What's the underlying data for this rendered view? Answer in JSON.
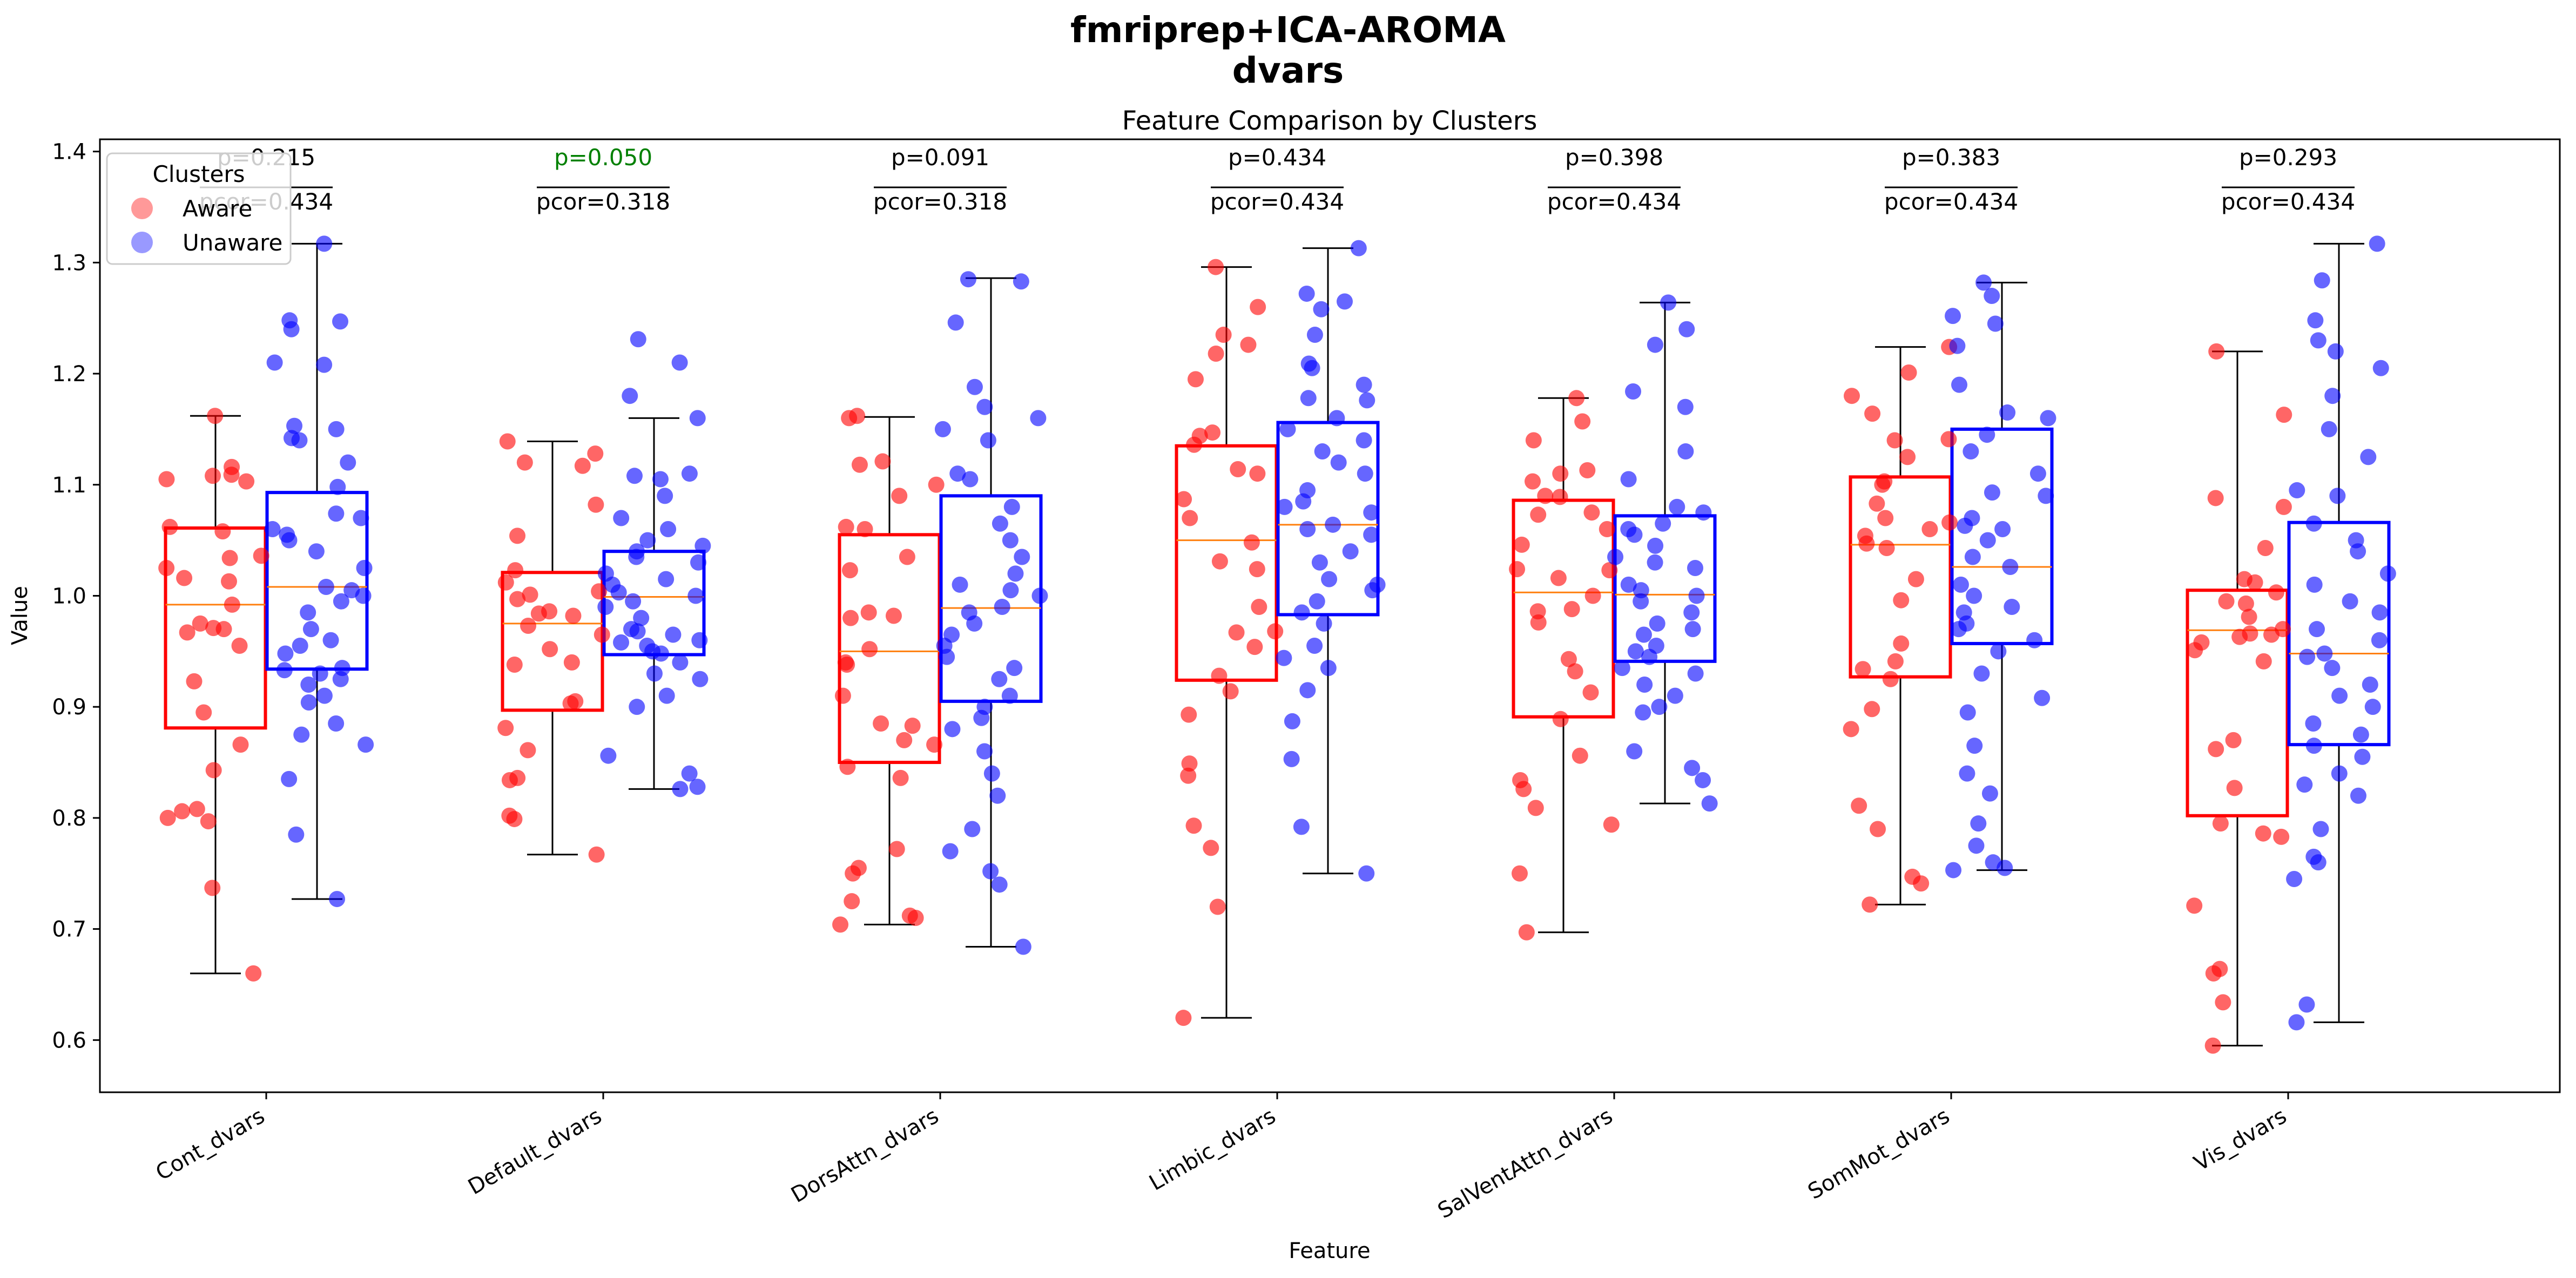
{
  "chart_data": {
    "type": "box",
    "suptitle_line1": "fmriprep+ICA-AROMA",
    "suptitle_line2": "dvars",
    "title": "Feature Comparison by Clusters",
    "xlabel": "Feature",
    "ylabel": "Value",
    "ylim": [
      0.553,
      1.411
    ],
    "yticks": [
      "0.6",
      "0.7",
      "0.8",
      "0.9",
      "1.0",
      "1.1",
      "1.2",
      "1.3",
      "1.4"
    ],
    "grid": false,
    "legend": {
      "title": "Clusters",
      "position": "top-left",
      "entries": [
        {
          "label": "Aware",
          "color": "#ff9999"
        },
        {
          "label": "Unaware",
          "color": "#9999ff"
        }
      ]
    },
    "colors": {
      "Aware": "#ff0000",
      "Unaware": "#0000ff",
      "median": "#ff7f0e",
      "significant": "#008000"
    },
    "categories": [
      "Cont_dvars",
      "Default_dvars",
      "DorsAttn_dvars",
      "Limbic_dvars",
      "SalVentAttn_dvars",
      "SomMot_dvars",
      "Vis_dvars"
    ],
    "annotations": [
      {
        "p": "p=0.215",
        "pcor": "pcor=0.434",
        "significant": false
      },
      {
        "p": "p=0.050",
        "pcor": "pcor=0.318",
        "significant": true
      },
      {
        "p": "p=0.091",
        "pcor": "pcor=0.318",
        "significant": false
      },
      {
        "p": "p=0.434",
        "pcor": "pcor=0.434",
        "significant": false
      },
      {
        "p": "p=0.398",
        "pcor": "pcor=0.434",
        "significant": false
      },
      {
        "p": "p=0.383",
        "pcor": "pcor=0.434",
        "significant": false
      },
      {
        "p": "p=0.293",
        "pcor": "pcor=0.434",
        "significant": false
      }
    ],
    "series": [
      {
        "name": "Aware",
        "boxes": [
          {
            "min": 0.66,
            "q1": 0.881,
            "median": 0.992,
            "q3": 1.061,
            "max": 1.162,
            "points": [
              0.66,
              0.737,
              0.797,
              0.8,
              0.806,
              0.808,
              0.843,
              0.866,
              0.895,
              0.923,
              0.955,
              0.967,
              0.97,
              0.971,
              0.975,
              0.992,
              1.013,
              1.016,
              1.025,
              1.034,
              1.036,
              1.058,
              1.062,
              1.103,
              1.105,
              1.108,
              1.109,
              1.116,
              1.162
            ]
          },
          {
            "min": 0.767,
            "q1": 0.897,
            "median": 0.975,
            "q3": 1.021,
            "max": 1.139,
            "points": [
              0.767,
              0.799,
              0.802,
              0.834,
              0.836,
              0.861,
              0.881,
              0.903,
              0.905,
              0.938,
              0.94,
              0.952,
              0.965,
              0.973,
              0.982,
              0.984,
              0.986,
              0.997,
              1.001,
              1.004,
              1.012,
              1.023,
              1.054,
              1.082,
              1.117,
              1.12,
              1.128,
              1.139
            ]
          },
          {
            "min": 0.704,
            "q1": 0.85,
            "median": 0.95,
            "q3": 1.055,
            "max": 1.161,
            "points": [
              0.704,
              0.71,
              0.712,
              0.725,
              0.75,
              0.755,
              0.772,
              0.836,
              0.846,
              0.866,
              0.87,
              0.883,
              0.885,
              0.91,
              0.938,
              0.94,
              0.952,
              0.98,
              0.982,
              0.985,
              1.023,
              1.035,
              1.06,
              1.062,
              1.09,
              1.1,
              1.118,
              1.121,
              1.16,
              1.162
            ]
          },
          {
            "min": 0.62,
            "q1": 0.924,
            "median": 1.05,
            "q3": 1.135,
            "max": 1.296,
            "points": [
              0.62,
              0.72,
              0.773,
              0.793,
              0.838,
              0.849,
              0.893,
              0.914,
              0.928,
              0.954,
              0.967,
              0.968,
              0.99,
              1.024,
              1.031,
              1.048,
              1.07,
              1.087,
              1.11,
              1.114,
              1.136,
              1.144,
              1.147,
              1.195,
              1.218,
              1.226,
              1.235,
              1.26,
              1.296
            ]
          },
          {
            "min": 0.697,
            "q1": 0.891,
            "median": 1.003,
            "q3": 1.086,
            "max": 1.178,
            "points": [
              0.697,
              0.75,
              0.794,
              0.809,
              0.826,
              0.834,
              0.856,
              0.889,
              0.913,
              0.932,
              0.943,
              0.976,
              0.986,
              0.988,
              1.0,
              1.016,
              1.023,
              1.024,
              1.046,
              1.06,
              1.073,
              1.075,
              1.089,
              1.09,
              1.103,
              1.11,
              1.113,
              1.14,
              1.157,
              1.178
            ]
          },
          {
            "min": 0.722,
            "q1": 0.927,
            "median": 1.046,
            "q3": 1.107,
            "max": 1.224,
            "points": [
              0.722,
              0.741,
              0.747,
              0.79,
              0.811,
              0.88,
              0.898,
              0.925,
              0.934,
              0.941,
              0.957,
              0.996,
              1.015,
              1.043,
              1.047,
              1.054,
              1.06,
              1.066,
              1.07,
              1.083,
              1.1,
              1.103,
              1.125,
              1.14,
              1.141,
              1.164,
              1.18,
              1.201,
              1.224
            ]
          },
          {
            "min": 0.595,
            "q1": 0.802,
            "median": 0.969,
            "q3": 1.005,
            "max": 1.22,
            "points": [
              0.595,
              0.634,
              0.66,
              0.664,
              0.721,
              0.783,
              0.786,
              0.795,
              0.827,
              0.862,
              0.87,
              0.941,
              0.951,
              0.958,
              0.963,
              0.965,
              0.966,
              0.97,
              0.981,
              0.993,
              0.995,
              1.003,
              1.012,
              1.015,
              1.043,
              1.08,
              1.088,
              1.163,
              1.22
            ]
          }
        ]
      },
      {
        "name": "Unaware",
        "boxes": [
          {
            "min": 0.727,
            "q1": 0.934,
            "median": 1.008,
            "q3": 1.093,
            "max": 1.317,
            "points": [
              0.727,
              0.785,
              0.835,
              0.866,
              0.875,
              0.885,
              0.904,
              0.91,
              0.92,
              0.925,
              0.93,
              0.933,
              0.935,
              0.948,
              0.955,
              0.96,
              0.97,
              0.985,
              0.995,
              1.0,
              1.005,
              1.008,
              1.025,
              1.04,
              1.05,
              1.055,
              1.06,
              1.07,
              1.074,
              1.098,
              1.12,
              1.14,
              1.142,
              1.15,
              1.153,
              1.208,
              1.21,
              1.24,
              1.247,
              1.248,
              1.317
            ]
          },
          {
            "min": 0.826,
            "q1": 0.947,
            "median": 0.999,
            "q3": 1.04,
            "max": 1.16,
            "points": [
              0.826,
              0.828,
              0.84,
              0.856,
              0.9,
              0.91,
              0.925,
              0.93,
              0.94,
              0.948,
              0.95,
              0.955,
              0.958,
              0.96,
              0.965,
              0.968,
              0.97,
              0.98,
              0.99,
              0.995,
              1.0,
              1.003,
              1.01,
              1.015,
              1.02,
              1.03,
              1.035,
              1.04,
              1.045,
              1.05,
              1.06,
              1.07,
              1.09,
              1.105,
              1.108,
              1.11,
              1.16,
              1.18,
              1.21,
              1.231
            ]
          },
          {
            "min": 0.684,
            "q1": 0.905,
            "median": 0.989,
            "q3": 1.09,
            "max": 1.286,
            "points": [
              0.684,
              0.74,
              0.752,
              0.77,
              0.79,
              0.82,
              0.84,
              0.86,
              0.88,
              0.89,
              0.9,
              0.91,
              0.925,
              0.935,
              0.945,
              0.955,
              0.965,
              0.975,
              0.985,
              0.99,
              1.0,
              1.005,
              1.01,
              1.02,
              1.035,
              1.05,
              1.065,
              1.08,
              1.105,
              1.11,
              1.14,
              1.15,
              1.16,
              1.17,
              1.188,
              1.246,
              1.283,
              1.285
            ]
          },
          {
            "min": 0.75,
            "q1": 0.983,
            "median": 1.064,
            "q3": 1.156,
            "max": 1.313,
            "points": [
              0.75,
              0.792,
              0.853,
              0.887,
              0.915,
              0.935,
              0.944,
              0.955,
              0.975,
              0.985,
              0.995,
              1.005,
              1.01,
              1.015,
              1.03,
              1.04,
              1.055,
              1.06,
              1.064,
              1.075,
              1.08,
              1.085,
              1.095,
              1.11,
              1.12,
              1.13,
              1.14,
              1.15,
              1.16,
              1.176,
              1.178,
              1.19,
              1.205,
              1.209,
              1.235,
              1.258,
              1.265,
              1.272,
              1.313
            ]
          },
          {
            "min": 0.813,
            "q1": 0.941,
            "median": 1.001,
            "q3": 1.072,
            "max": 1.264,
            "points": [
              0.813,
              0.834,
              0.845,
              0.86,
              0.895,
              0.9,
              0.91,
              0.92,
              0.93,
              0.935,
              0.945,
              0.95,
              0.955,
              0.965,
              0.97,
              0.975,
              0.985,
              0.995,
              1.0,
              1.005,
              1.01,
              1.025,
              1.03,
              1.035,
              1.045,
              1.055,
              1.06,
              1.065,
              1.075,
              1.08,
              1.105,
              1.13,
              1.17,
              1.184,
              1.226,
              1.24,
              1.264
            ]
          },
          {
            "min": 0.753,
            "q1": 0.957,
            "median": 1.026,
            "q3": 1.15,
            "max": 1.282,
            "points": [
              0.753,
              0.755,
              0.76,
              0.775,
              0.795,
              0.822,
              0.84,
              0.865,
              0.895,
              0.908,
              0.93,
              0.95,
              0.96,
              0.97,
              0.975,
              0.985,
              0.99,
              1.0,
              1.01,
              1.026,
              1.035,
              1.05,
              1.06,
              1.063,
              1.07,
              1.09,
              1.093,
              1.11,
              1.13,
              1.145,
              1.16,
              1.165,
              1.19,
              1.225,
              1.245,
              1.252,
              1.27,
              1.282
            ]
          },
          {
            "min": 0.616,
            "q1": 0.866,
            "median": 0.948,
            "q3": 1.066,
            "max": 1.317,
            "points": [
              0.616,
              0.632,
              0.745,
              0.76,
              0.765,
              0.79,
              0.82,
              0.83,
              0.84,
              0.855,
              0.865,
              0.875,
              0.885,
              0.9,
              0.91,
              0.92,
              0.935,
              0.945,
              0.948,
              0.96,
              0.97,
              0.985,
              0.995,
              1.01,
              1.02,
              1.04,
              1.05,
              1.065,
              1.09,
              1.095,
              1.125,
              1.15,
              1.18,
              1.205,
              1.22,
              1.23,
              1.248,
              1.284,
              1.317
            ]
          }
        ]
      }
    ]
  }
}
